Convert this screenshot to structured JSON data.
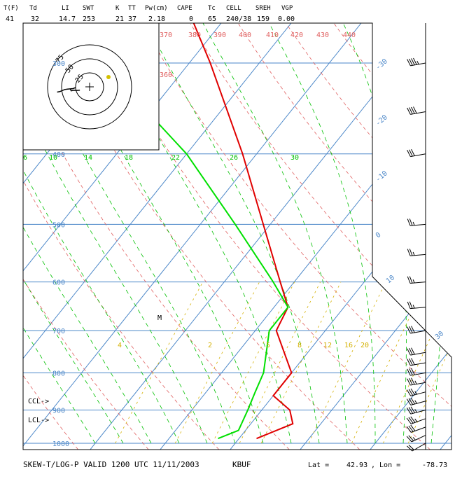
{
  "header": {
    "labels": [
      "T(F)",
      "Td",
      "LI",
      "SWT",
      "K",
      "TT",
      "Pw(cm)",
      "CAPE",
      "Tc",
      "CELL",
      "SREH",
      "VGP"
    ],
    "values": [
      "41",
      "32",
      "14.7",
      "253",
      "21",
      "37",
      "2.18",
      "0",
      "65",
      "240/38",
      "159",
      "0.00"
    ]
  },
  "footer": {
    "title": "SKEW-T/LOG-P VALID 1200 UTC 11/11/2003",
    "station": "KBUF",
    "lat_label": "Lat =",
    "lat_value": "42.93",
    "lon_label": ", Lon =",
    "lon_value": "-78.73"
  },
  "markers": {
    "ccl": "CCL->",
    "lcl": "LCL->",
    "m": "M"
  },
  "colors": {
    "temperature": "#e00000",
    "dewpoint": "#00e000",
    "isotherm": "#4a86c8",
    "isobar": "#4a86c8",
    "dry_adiabat": "#e06060",
    "moist_adiabat": "#00c000",
    "mixing_ratio": "#d4b000",
    "wind": "#000000",
    "hodograph": "#000000"
  },
  "chart_data": {
    "type": "line",
    "title": "SKEW-T/LOG-P VALID 1200 UTC 11/11/2003",
    "pressure_levels": [
      1000,
      900,
      800,
      700,
      600,
      500,
      400,
      300
    ],
    "isotherm_labels": [
      "-30",
      "-20",
      "-10",
      "0",
      "10",
      "30"
    ],
    "theta_labels": [
      "370",
      "380",
      "390",
      "400",
      "410",
      "420",
      "430",
      "440",
      "360"
    ],
    "theta_e_labels": [
      "6",
      "10",
      "14",
      "18",
      "22",
      "26",
      "30"
    ],
    "mixing_ratio_labels": [
      "4",
      "2",
      "5",
      "8",
      "12",
      "16",
      "20"
    ],
    "series": [
      {
        "name": "Temperature",
        "points": [
          {
            "p": 985,
            "t": 2.5
          },
          {
            "p": 940,
            "t": 6
          },
          {
            "p": 900,
            "t": 4
          },
          {
            "p": 860,
            "t": 0
          },
          {
            "p": 800,
            "t": 0
          },
          {
            "p": 700,
            "t": -7
          },
          {
            "p": 650,
            "t": -8
          },
          {
            "p": 600,
            "t": -12
          },
          {
            "p": 500,
            "t": -21
          },
          {
            "p": 400,
            "t": -32
          },
          {
            "p": 300,
            "t": -47
          },
          {
            "p": 250,
            "t": -57
          },
          {
            "p": 200,
            "t": -56
          },
          {
            "p": 180,
            "t": -52
          },
          {
            "p": 160,
            "t": -53
          },
          {
            "p": 150,
            "t": -52
          }
        ]
      },
      {
        "name": "Dewpoint",
        "points": [
          {
            "p": 985,
            "t": -3
          },
          {
            "p": 960,
            "t": -1
          },
          {
            "p": 900,
            "t": -2
          },
          {
            "p": 850,
            "t": -3
          },
          {
            "p": 800,
            "t": -4
          },
          {
            "p": 700,
            "t": -8
          },
          {
            "p": 650,
            "t": -8
          },
          {
            "p": 600,
            "t": -13
          },
          {
            "p": 500,
            "t": -25
          },
          {
            "p": 400,
            "t": -40
          },
          {
            "p": 330,
            "t": -55
          },
          {
            "p": 310,
            "t": -90
          }
        ]
      }
    ],
    "winds": [
      {
        "p": 1000,
        "dir": 240,
        "speed": 20
      },
      {
        "p": 975,
        "dir": 245,
        "speed": 25
      },
      {
        "p": 950,
        "dir": 250,
        "speed": 30
      },
      {
        "p": 925,
        "dir": 250,
        "speed": 35
      },
      {
        "p": 900,
        "dir": 255,
        "speed": 35
      },
      {
        "p": 875,
        "dir": 255,
        "speed": 35
      },
      {
        "p": 850,
        "dir": 255,
        "speed": 35
      },
      {
        "p": 825,
        "dir": 260,
        "speed": 35
      },
      {
        "p": 800,
        "dir": 260,
        "speed": 30
      },
      {
        "p": 775,
        "dir": 260,
        "speed": 30
      },
      {
        "p": 750,
        "dir": 260,
        "speed": 30
      },
      {
        "p": 700,
        "dir": 260,
        "speed": 30
      },
      {
        "p": 650,
        "dir": 265,
        "speed": 25
      },
      {
        "p": 600,
        "dir": 265,
        "speed": 25
      },
      {
        "p": 550,
        "dir": 265,
        "speed": 25
      },
      {
        "p": 500,
        "dir": 265,
        "speed": 25
      },
      {
        "p": 400,
        "dir": 260,
        "speed": 30
      },
      {
        "p": 350,
        "dir": 260,
        "speed": 40
      },
      {
        "p": 300,
        "dir": 260,
        "speed": 45
      },
      {
        "p": 250,
        "dir": 255,
        "speed": 55
      },
      {
        "p": 230,
        "dir": 255,
        "speed": 60
      },
      {
        "p": 200,
        "dir": 255,
        "speed": 60
      }
    ],
    "hodograph": {
      "ring_labels": [
        "75",
        "50",
        "25"
      ]
    }
  }
}
